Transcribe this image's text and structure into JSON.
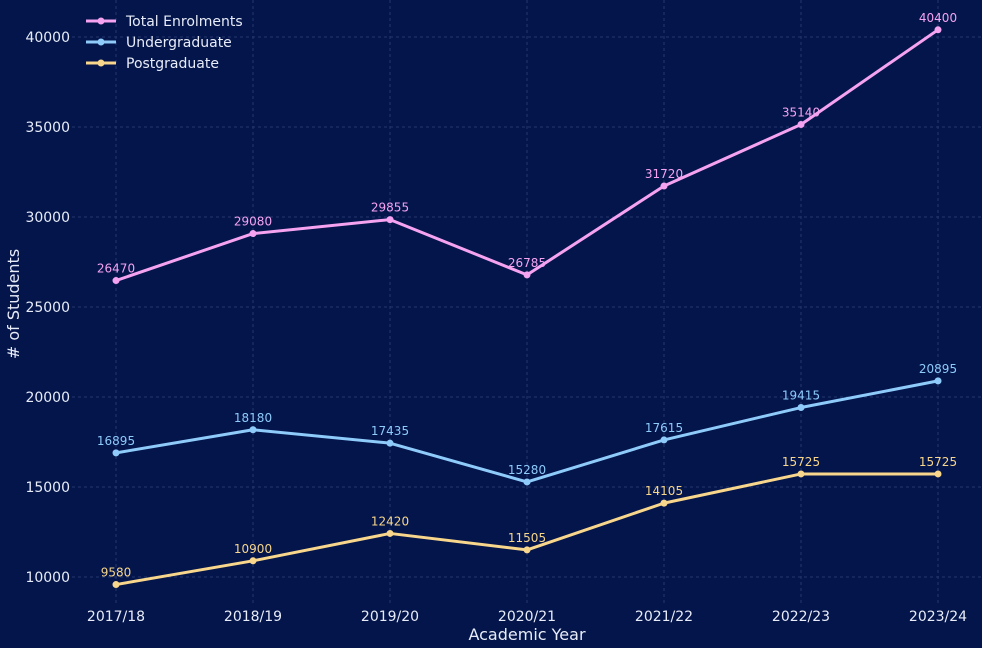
{
  "chart_data": {
    "type": "line",
    "title": "",
    "xlabel": "Academic Year",
    "ylabel": "# of Students",
    "categories": [
      "2017/18",
      "2018/19",
      "2019/20",
      "2020/21",
      "2021/22",
      "2022/23",
      "2023/24"
    ],
    "ylim": [
      8500,
      41500
    ],
    "yticks": [
      10000,
      15000,
      20000,
      25000,
      30000,
      35000,
      40000
    ],
    "grid": true,
    "legend_position": "top-left",
    "series": [
      {
        "name": "Total Enrolments",
        "color": "#f5a3f0",
        "values": [
          26470,
          29080,
          29855,
          26785,
          31720,
          35140,
          40400
        ]
      },
      {
        "name": "Undergraduate",
        "color": "#8ecbfb",
        "values": [
          16895,
          18180,
          17435,
          15280,
          17615,
          19415,
          20895
        ]
      },
      {
        "name": "Postgraduate",
        "color": "#f8d68b",
        "values": [
          9580,
          10900,
          12420,
          11505,
          14105,
          15725,
          15725
        ]
      }
    ]
  }
}
